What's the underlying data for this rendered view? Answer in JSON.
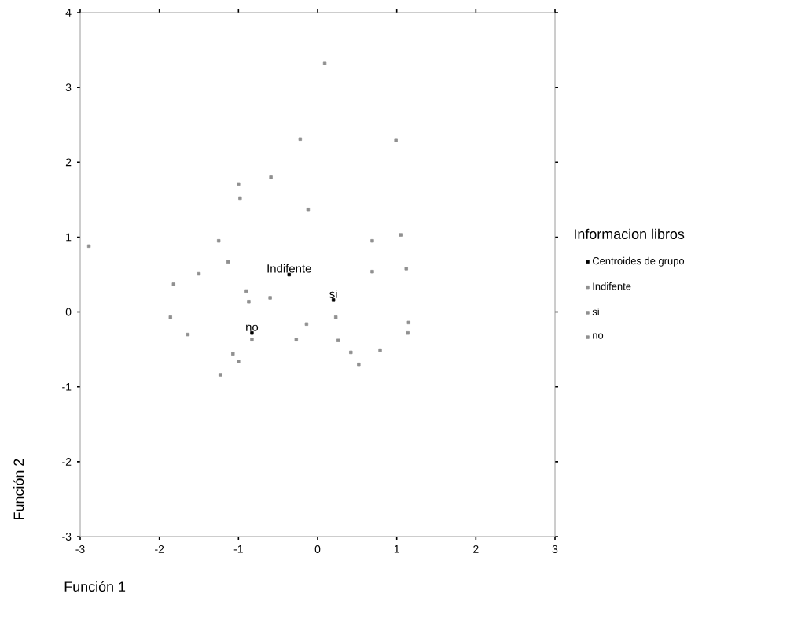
{
  "chart_data": {
    "type": "scatter",
    "xlabel": "Función 1",
    "ylabel": "Función 2",
    "legend_title": "Informacion libros",
    "xlim": [
      -3,
      3
    ],
    "ylim": [
      -3,
      4
    ],
    "xticks": [
      -3,
      -2,
      -1,
      0,
      1,
      2,
      3
    ],
    "yticks": [
      -3,
      -2,
      -1,
      0,
      1,
      2,
      3,
      4
    ],
    "grid": false,
    "legend": "right",
    "marker": "square",
    "series": [
      {
        "name": "Centroides de grupo",
        "color": "#000000",
        "x": [
          -0.36,
          0.2,
          -0.83
        ],
        "values": [
          0.5,
          0.16,
          -0.28
        ]
      },
      {
        "name": "Indifente",
        "color": "#909090",
        "x": [
          -0.22,
          -0.59,
          -1.0,
          -0.98,
          -0.12,
          -1.25,
          -2.89,
          -1.13,
          -1.5,
          -0.6,
          -1.82
        ],
        "values": [
          2.31,
          1.8,
          1.71,
          1.52,
          1.37,
          0.95,
          0.88,
          0.67,
          0.51,
          0.19,
          0.37
        ]
      },
      {
        "name": "si",
        "color": "#909090",
        "x": [
          0.09,
          0.99,
          1.05,
          0.69,
          0.69,
          1.12,
          0.23,
          0.26,
          0.42,
          0.52,
          0.79,
          1.15,
          1.14,
          -0.14
        ],
        "values": [
          3.32,
          2.29,
          1.03,
          0.95,
          0.54,
          0.58,
          -0.07,
          -0.38,
          -0.54,
          -0.7,
          -0.51,
          -0.14,
          -0.28,
          -0.16
        ]
      },
      {
        "name": "no",
        "color": "#909090",
        "x": [
          -0.9,
          -0.87,
          -1.86,
          -1.64,
          -0.83,
          -1.07,
          -1.0,
          -1.23,
          -0.27
        ],
        "values": [
          0.28,
          0.14,
          -0.07,
          -0.3,
          -0.37,
          -0.56,
          -0.66,
          -0.84,
          -0.37
        ]
      }
    ],
    "annotations": [
      {
        "text": "Indifente",
        "x": -0.36,
        "y": 0.5
      },
      {
        "text": "si",
        "x": 0.2,
        "y": 0.16
      },
      {
        "text": "no",
        "x": -0.83,
        "y": -0.28
      }
    ]
  }
}
